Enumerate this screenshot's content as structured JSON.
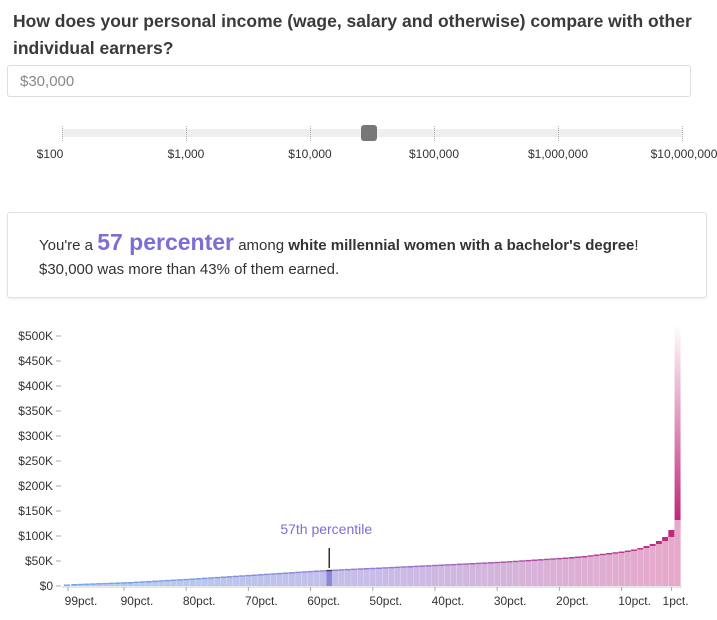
{
  "question": "How does your personal income (wage, salary and otherwise) compare with other individual earners?",
  "income_input": {
    "value": "$30,000"
  },
  "slider": {
    "value": 30000,
    "labels": [
      "$100",
      "$1,000",
      "$10,000",
      "$100,000",
      "$1,000,000",
      "$10,000,000"
    ],
    "min_log10": 2,
    "max_log10": 7
  },
  "result": {
    "prefix": "You're a",
    "percentile_text": "57 percenter",
    "among": "among",
    "group": "white millennial women with a bachelor's degree",
    "exclaim": "!",
    "line2": "$30,000 was more than 43% of them earned."
  },
  "colors": {
    "accent": "#7b6fd6",
    "top": "#c0287a"
  },
  "chart_data": {
    "type": "bar",
    "title": "",
    "xlabel": "",
    "ylabel": "",
    "ylim": [
      0,
      500000
    ],
    "yticks": [
      {
        "v": 0,
        "label": "$0"
      },
      {
        "v": 50,
        "label": "$50K"
      },
      {
        "v": 100,
        "label": "$100K"
      },
      {
        "v": 150,
        "label": "$150K"
      },
      {
        "v": 200,
        "label": "$200K"
      },
      {
        "v": 250,
        "label": "$250K"
      },
      {
        "v": 300,
        "label": "$300K"
      },
      {
        "v": 350,
        "label": "$350K"
      },
      {
        "v": 400,
        "label": "$400K"
      },
      {
        "v": 450,
        "label": "$450K"
      },
      {
        "v": 500,
        "label": "$500K"
      }
    ],
    "xticks": [
      {
        "p": 99,
        "label": "99pct."
      },
      {
        "p": 90,
        "label": "90pct."
      },
      {
        "p": 80,
        "label": "80pct."
      },
      {
        "p": 70,
        "label": "70pct."
      },
      {
        "p": 60,
        "label": "60pct."
      },
      {
        "p": 50,
        "label": "50pct."
      },
      {
        "p": 40,
        "label": "40pct."
      },
      {
        "p": 30,
        "label": "30pct."
      },
      {
        "p": 20,
        "label": "20pct."
      },
      {
        "p": 10,
        "label": "10pct."
      },
      {
        "p": 1,
        "label": "1pct."
      }
    ],
    "value_units": "thousands of dollars",
    "percentiles_desc_from": 99,
    "values": [
      1.0,
      1.4,
      1.9,
      2.3,
      2.8,
      3.2,
      3.7,
      4.1,
      4.6,
      5.0,
      5.7,
      6.4,
      7.1,
      7.8,
      8.5,
      9.2,
      9.9,
      10.6,
      11.3,
      12,
      12.8,
      13.6,
      14.4,
      15.2,
      16,
      16.8,
      17.6,
      18.4,
      19.2,
      20,
      20.8,
      21.6,
      22.4,
      23.2,
      24,
      24.8,
      25.6,
      26.4,
      27.2,
      28,
      28.6,
      29.3,
      30,
      30.6,
      31.2,
      31.8,
      32.4,
      33,
      33.5,
      34,
      34.6,
      35.2,
      35.8,
      36.4,
      37,
      37.6,
      38.2,
      38.8,
      39.4,
      40,
      40.6,
      41.2,
      41.8,
      42.4,
      43,
      43.6,
      44.2,
      44.8,
      45.4,
      46,
      46.8,
      47.6,
      48.4,
      49.2,
      50,
      50.8,
      51.6,
      52.4,
      53.2,
      54,
      55,
      56,
      57,
      58.5,
      60,
      61.5,
      63,
      64.5,
      66,
      68,
      70,
      73,
      76,
      80,
      84,
      90,
      98,
      112,
      132,
      530
    ],
    "highlight": {
      "percentile": 57,
      "label": "57th percentile"
    }
  }
}
